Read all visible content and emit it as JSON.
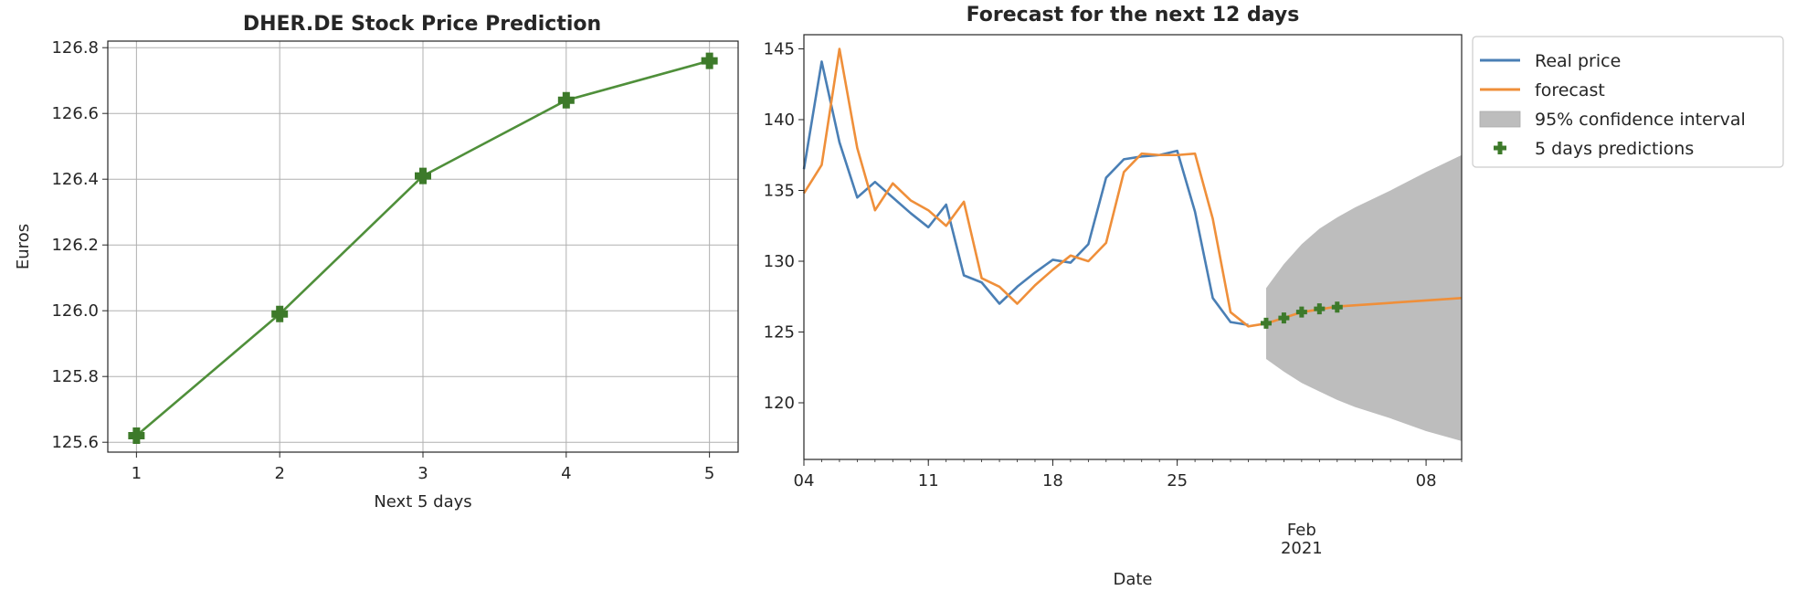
{
  "chart_data": [
    {
      "type": "line",
      "title": "DHER.DE Stock Price Prediction",
      "xlabel": "Next 5 days",
      "ylabel": "Euros",
      "x": [
        1,
        2,
        3,
        4,
        5
      ],
      "xlim": [
        0.8,
        5.2
      ],
      "ylim": [
        125.57,
        126.82
      ],
      "xticks": [
        1,
        2,
        3,
        4,
        5
      ],
      "xtick_labels": [
        "1",
        "2",
        "3",
        "4",
        "5"
      ],
      "yticks": [
        125.6,
        125.8,
        126.0,
        126.2,
        126.4,
        126.6,
        126.8
      ],
      "ytick_labels": [
        "125.6",
        "125.8",
        "126.0",
        "126.2",
        "126.4",
        "126.6",
        "126.8"
      ],
      "grid": true,
      "series": [
        {
          "values": [
            125.62,
            125.99,
            126.41,
            126.64,
            126.76
          ],
          "color": "#4f8f3a",
          "marker": "plus"
        }
      ]
    },
    {
      "type": "line",
      "title": "Forecast for the next 12 days",
      "xlabel": "Date",
      "ylabel": "",
      "x_type": "date",
      "xlim": [
        "2021-01-04",
        "2021-02-10"
      ],
      "ylim": [
        116,
        146
      ],
      "xticks": [
        "2021-01-04",
        "2021-01-11",
        "2021-01-18",
        "2021-01-25",
        "2021-02-08"
      ],
      "xtick_labels": [
        "04",
        "11",
        "18",
        "25",
        "08"
      ],
      "x_month_label": {
        "date": "2021-02-01",
        "text": "Feb\n2021"
      },
      "yticks": [
        120,
        125,
        130,
        135,
        140,
        145
      ],
      "ytick_labels": [
        "120",
        "125",
        "130",
        "135",
        "140",
        "145"
      ],
      "grid": false,
      "legend": {
        "placement": "outside-right",
        "entries": [
          "Real price",
          "forecast",
          "95% confidence interval",
          "5 days predictions"
        ]
      },
      "series": [
        {
          "name": "Real price",
          "color": "#4a7fb5",
          "x": [
            "2021-01-04",
            "2021-01-05",
            "2021-01-06",
            "2021-01-07",
            "2021-01-08",
            "2021-01-09",
            "2021-01-10",
            "2021-01-11",
            "2021-01-12",
            "2021-01-13",
            "2021-01-14",
            "2021-01-15",
            "2021-01-16",
            "2021-01-17",
            "2021-01-18",
            "2021-01-19",
            "2021-01-20",
            "2021-01-21",
            "2021-01-22",
            "2021-01-23",
            "2021-01-24",
            "2021-01-25",
            "2021-01-26",
            "2021-01-27",
            "2021-01-28",
            "2021-01-29"
          ],
          "values": [
            136.5,
            144.1,
            138.4,
            134.5,
            135.6,
            134.5,
            133.4,
            132.4,
            134.0,
            129.0,
            128.5,
            127.0,
            128.2,
            129.2,
            130.1,
            129.9,
            131.2,
            135.9,
            137.2,
            137.4,
            137.5,
            137.8,
            133.5,
            127.4,
            125.7,
            125.5
          ]
        },
        {
          "name": "forecast",
          "color": "#ef8f3a",
          "x": [
            "2021-01-04",
            "2021-01-05",
            "2021-01-06",
            "2021-01-07",
            "2021-01-08",
            "2021-01-09",
            "2021-01-10",
            "2021-01-11",
            "2021-01-12",
            "2021-01-13",
            "2021-01-14",
            "2021-01-15",
            "2021-01-16",
            "2021-01-17",
            "2021-01-18",
            "2021-01-19",
            "2021-01-20",
            "2021-01-21",
            "2021-01-22",
            "2021-01-23",
            "2021-01-24",
            "2021-01-25",
            "2021-01-26",
            "2021-01-27",
            "2021-01-28",
            "2021-01-29",
            "2021-01-30",
            "2021-01-31",
            "2021-02-01",
            "2021-02-02",
            "2021-02-03",
            "2021-02-10"
          ],
          "values": [
            134.8,
            136.8,
            145.0,
            138.0,
            133.6,
            135.5,
            134.3,
            133.6,
            132.5,
            134.2,
            128.8,
            128.2,
            127.0,
            128.3,
            129.4,
            130.4,
            130.0,
            131.3,
            136.3,
            137.6,
            137.5,
            137.5,
            137.6,
            133.0,
            126.4,
            125.4,
            125.6,
            126.0,
            126.4,
            126.6,
            126.8,
            127.4
          ]
        },
        {
          "name": "95% confidence interval",
          "type": "area",
          "color": "#bdbdbd",
          "x": [
            "2021-01-30",
            "2021-01-31",
            "2021-02-01",
            "2021-02-02",
            "2021-02-03",
            "2021-02-04",
            "2021-02-06",
            "2021-02-08",
            "2021-02-10"
          ],
          "lower": [
            123.1,
            122.2,
            121.4,
            120.8,
            120.2,
            119.7,
            118.9,
            118.0,
            117.3
          ],
          "upper": [
            128.1,
            129.8,
            131.2,
            132.3,
            133.1,
            133.8,
            135.0,
            136.3,
            137.5
          ]
        },
        {
          "name": "5 days predictions",
          "type": "scatter",
          "marker": "plus",
          "color": "#3d7a2a",
          "x": [
            "2021-01-30",
            "2021-01-31",
            "2021-02-01",
            "2021-02-02",
            "2021-02-03"
          ],
          "values": [
            125.62,
            125.99,
            126.41,
            126.64,
            126.76
          ]
        }
      ]
    }
  ]
}
